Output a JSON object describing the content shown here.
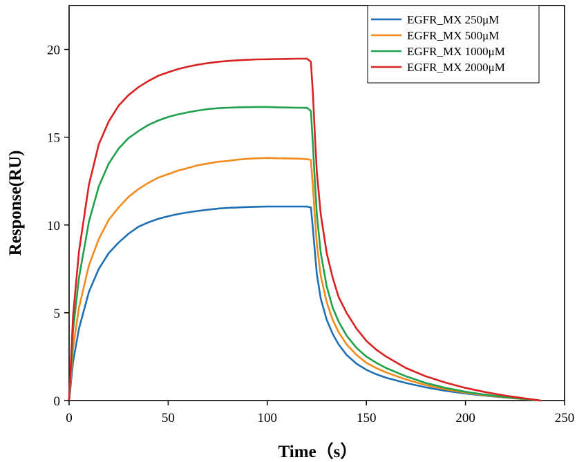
{
  "chart_data": {
    "type": "line",
    "title": "",
    "xlabel": "Time（s）",
    "ylabel": "Response(RU)",
    "xlim": [
      0,
      250
    ],
    "ylim": [
      0,
      22.5
    ],
    "xticks": [
      0,
      50,
      100,
      150,
      200,
      250
    ],
    "yticks": [
      0,
      5,
      10,
      15,
      20
    ],
    "grid": false,
    "legend_position": "top-right",
    "series": [
      {
        "name": "EGFR_MX 250μM",
        "color": "#1f6fb4",
        "x": [
          0,
          2,
          5,
          10,
          15,
          20,
          25,
          30,
          35,
          40,
          45,
          50,
          55,
          60,
          65,
          70,
          75,
          80,
          85,
          90,
          95,
          100,
          105,
          110,
          115,
          120,
          122,
          123,
          124,
          125,
          127,
          130,
          133,
          136,
          140,
          145,
          150,
          155,
          160,
          170,
          180,
          190,
          200,
          210,
          220,
          230,
          238
        ],
        "y": [
          0,
          2.2,
          4.1,
          6.2,
          7.5,
          8.4,
          9.0,
          9.5,
          9.9,
          10.15,
          10.35,
          10.5,
          10.62,
          10.72,
          10.8,
          10.87,
          10.93,
          10.97,
          11.0,
          11.02,
          11.04,
          11.05,
          11.05,
          11.05,
          11.05,
          11.05,
          11.0,
          9.8,
          8.5,
          7.2,
          5.8,
          4.6,
          3.8,
          3.2,
          2.6,
          2.1,
          1.75,
          1.5,
          1.3,
          1.0,
          0.75,
          0.55,
          0.4,
          0.28,
          0.17,
          0.08,
          0.0
        ]
      },
      {
        "name": "EGFR_MX 500μM",
        "color": "#f28a1c",
        "x": [
          0,
          2,
          5,
          10,
          15,
          20,
          25,
          30,
          35,
          40,
          45,
          50,
          55,
          60,
          65,
          70,
          75,
          80,
          85,
          90,
          95,
          100,
          105,
          110,
          115,
          120,
          122,
          123,
          124,
          125,
          127,
          130,
          133,
          136,
          140,
          145,
          150,
          155,
          160,
          170,
          180,
          190,
          200,
          210,
          220,
          230,
          238
        ],
        "y": [
          0,
          3.0,
          5.3,
          7.7,
          9.2,
          10.3,
          11.0,
          11.6,
          12.05,
          12.4,
          12.7,
          12.9,
          13.1,
          13.25,
          13.4,
          13.5,
          13.6,
          13.65,
          13.72,
          13.77,
          13.8,
          13.82,
          13.8,
          13.79,
          13.78,
          13.75,
          13.7,
          12.2,
          10.5,
          8.9,
          7.1,
          5.6,
          4.6,
          3.9,
          3.2,
          2.6,
          2.15,
          1.85,
          1.6,
          1.2,
          0.88,
          0.64,
          0.45,
          0.3,
          0.18,
          0.08,
          0.0
        ]
      },
      {
        "name": "EGFR_MX 1000μM",
        "color": "#1fa04a",
        "x": [
          0,
          2,
          5,
          10,
          15,
          20,
          25,
          30,
          35,
          40,
          45,
          50,
          55,
          60,
          65,
          70,
          75,
          80,
          85,
          90,
          95,
          100,
          105,
          110,
          115,
          120,
          122,
          123,
          124,
          125,
          127,
          130,
          133,
          136,
          140,
          145,
          150,
          155,
          160,
          170,
          180,
          190,
          200,
          210,
          220,
          230,
          238
        ],
        "y": [
          0,
          4.0,
          7.0,
          10.2,
          12.2,
          13.5,
          14.35,
          14.95,
          15.35,
          15.7,
          15.95,
          16.15,
          16.3,
          16.42,
          16.52,
          16.6,
          16.65,
          16.68,
          16.7,
          16.71,
          16.72,
          16.72,
          16.7,
          16.69,
          16.68,
          16.67,
          16.5,
          14.6,
          12.5,
          10.6,
          8.4,
          6.5,
          5.3,
          4.5,
          3.7,
          3.0,
          2.5,
          2.15,
          1.85,
          1.38,
          1.0,
          0.72,
          0.5,
          0.33,
          0.2,
          0.09,
          0.0
        ]
      },
      {
        "name": "EGFR_MX 2000μM",
        "color": "#d92121",
        "x": [
          0,
          2,
          5,
          10,
          15,
          20,
          25,
          30,
          35,
          40,
          45,
          50,
          55,
          60,
          65,
          70,
          75,
          80,
          85,
          90,
          95,
          100,
          105,
          110,
          115,
          120,
          122,
          123,
          124,
          125,
          127,
          130,
          133,
          136,
          140,
          145,
          150,
          155,
          160,
          170,
          180,
          190,
          200,
          210,
          220,
          230,
          238
        ],
        "y": [
          0,
          4.8,
          8.5,
          12.3,
          14.6,
          15.9,
          16.8,
          17.4,
          17.85,
          18.2,
          18.5,
          18.7,
          18.88,
          19.02,
          19.13,
          19.22,
          19.29,
          19.34,
          19.38,
          19.41,
          19.43,
          19.44,
          19.45,
          19.46,
          19.47,
          19.47,
          19.3,
          17.5,
          15.2,
          13.0,
          10.6,
          8.4,
          7.0,
          5.9,
          5.0,
          4.1,
          3.4,
          2.9,
          2.5,
          1.85,
          1.38,
          1.02,
          0.72,
          0.48,
          0.28,
          0.12,
          0.0
        ]
      }
    ]
  }
}
